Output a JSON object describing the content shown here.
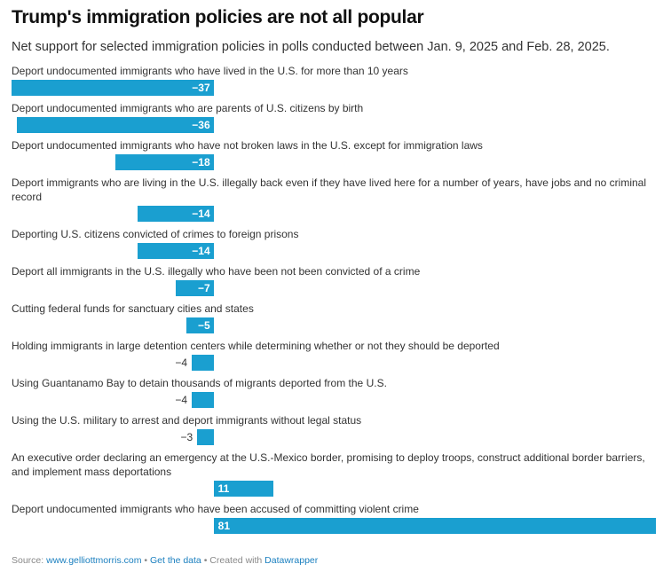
{
  "title": "Trump's immigration policies are not all popular",
  "subtitle": "Net support for selected immigration policies in polls conducted between Jan. 9, 2025 and Feb. 28, 2025.",
  "colors": {
    "bar": "#1a9fd0",
    "link": "#1a7fbf"
  },
  "footer": {
    "source_prefix": "Source: ",
    "source_link": "www.gelliottmorris.com",
    "sep1": " • ",
    "get_data": "Get the data",
    "sep2": " • Created with ",
    "datawrapper": "Datawrapper"
  },
  "chart_data": {
    "type": "bar",
    "orientation": "horizontal",
    "xlim": [
      -37,
      81
    ],
    "title": "Trump's immigration policies are not all popular",
    "subtitle": "Net support for selected immigration policies in polls conducted between Jan. 9, 2025 and Feb. 28, 2025.",
    "categories": [
      "Deport undocumented immigrants who have lived in the U.S. for more than 10 years",
      "Deport undocumented immigrants who are parents of U.S. citizens by birth",
      "Deport undocumented immigrants who have not broken laws in the U.S. except for immigration laws",
      "Deport immigrants who are living in the U.S. illegally back even if they have lived here for a number of years, have jobs and no criminal record",
      "Deporting U.S. citizens convicted of crimes to foreign prisons",
      "Deport all immigrants in the U.S. illegally who have been not been convicted of a crime",
      "Cutting federal funds for sanctuary cities and states",
      "Holding immigrants in large detention centers while determining whether or not they should be deported",
      "Using Guantanamo Bay to detain thousands of migrants deported from the U.S.",
      "Using the U.S. military to arrest and deport immigrants without legal status",
      "An executive order declaring an emergency at the U.S.-Mexico border, promising to deploy troops, construct additional border barriers, and implement mass deportations",
      "Deport undocumented immigrants who have been accused of committing violent crime"
    ],
    "values": [
      -37,
      -36,
      -18,
      -14,
      -14,
      -7,
      -5,
      -4,
      -4,
      -3,
      11,
      81
    ],
    "value_labels": [
      "−37",
      "−36",
      "−18",
      "−14",
      "−14",
      "−7",
      "−5",
      "−4",
      "−4",
      "−3",
      "11",
      "81"
    ]
  }
}
